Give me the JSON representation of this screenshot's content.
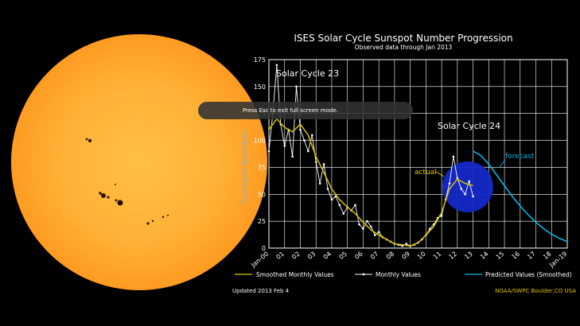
{
  "banner": {
    "text": "Press Esc to exit full screen mode."
  },
  "footer": {
    "updated": "Updated 2013 Feb  4",
    "credit": "NOAA/SWPC Boulder,CO USA"
  },
  "chart_data": {
    "type": "line",
    "title": "ISES Solar Cycle Sunspot Number Progression",
    "subtitle": "Observed data through Jan 2013",
    "ylabel": "Sunspot Number",
    "ylim": [
      0,
      175
    ],
    "yticks": [
      0,
      25,
      50,
      75,
      100,
      125,
      150,
      175
    ],
    "xlim": [
      2000,
      2019
    ],
    "xticks": [
      {
        "v": 2000,
        "label": "Jan-00"
      },
      {
        "v": 2001,
        "label": "01"
      },
      {
        "v": 2002,
        "label": "02"
      },
      {
        "v": 2003,
        "label": "03"
      },
      {
        "v": 2004,
        "label": "04"
      },
      {
        "v": 2005,
        "label": "05"
      },
      {
        "v": 2006,
        "label": "06"
      },
      {
        "v": 2007,
        "label": "07"
      },
      {
        "v": 2008,
        "label": "08"
      },
      {
        "v": 2009,
        "label": "09"
      },
      {
        "v": 2010,
        "label": "10"
      },
      {
        "v": 2011,
        "label": "11"
      },
      {
        "v": 2012,
        "label": "12"
      },
      {
        "v": 2013,
        "label": "13"
      },
      {
        "v": 2014,
        "label": "14"
      },
      {
        "v": 2015,
        "label": "15"
      },
      {
        "v": 2016,
        "label": "16"
      },
      {
        "v": 2017,
        "label": "17"
      },
      {
        "v": 2018,
        "label": "18"
      },
      {
        "v": 2019,
        "label": "Jan-19"
      }
    ],
    "grid": true,
    "colors": {
      "smoothed": "#d8c200",
      "monthly": "#ffffff",
      "predicted": "#00b7e6",
      "circle": "#1428c8"
    },
    "annotations": [
      {
        "text": "Solar Cycle 23"
      },
      {
        "text": "Solar Cycle 24"
      },
      {
        "text": "actual"
      },
      {
        "text": "forecast"
      }
    ],
    "legend": [
      {
        "name": "Smoothed Monthly Values"
      },
      {
        "name": "Monthly Values"
      },
      {
        "name": "Predicted Values (Smoothed)"
      }
    ],
    "series": [
      {
        "name": "Monthly Values",
        "x": [
          2000.0,
          2000.25,
          2000.5,
          2000.75,
          2001.0,
          2001.25,
          2001.5,
          2001.75,
          2002.0,
          2002.25,
          2002.5,
          2002.75,
          2003.0,
          2003.25,
          2003.5,
          2003.75,
          2004.0,
          2004.25,
          2004.5,
          2004.75,
          2005.0,
          2005.25,
          2005.5,
          2005.75,
          2006.0,
          2006.25,
          2006.5,
          2006.75,
          2007.0,
          2007.25,
          2007.5,
          2007.75,
          2008.0,
          2008.25,
          2008.5,
          2008.75,
          2009.0,
          2009.25,
          2009.5,
          2009.75,
          2010.0,
          2010.25,
          2010.5,
          2010.75,
          2011.0,
          2011.25,
          2011.5,
          2011.75,
          2012.0,
          2012.25,
          2012.5,
          2012.75,
          2013.0
        ],
        "values": [
          90,
          125,
          170,
          115,
          95,
          110,
          85,
          150,
          110,
          100,
          90,
          105,
          80,
          60,
          78,
          55,
          45,
          48,
          40,
          32,
          38,
          35,
          40,
          22,
          18,
          25,
          20,
          12,
          15,
          10,
          8,
          6,
          4,
          3,
          2,
          4,
          2,
          3,
          5,
          8,
          12,
          18,
          22,
          28,
          30,
          45,
          60,
          85,
          65,
          55,
          50,
          62,
          48
        ]
      },
      {
        "name": "Smoothed Monthly Values",
        "x": [
          2000.0,
          2000.5,
          2001.0,
          2001.5,
          2002.0,
          2002.5,
          2003.0,
          2003.5,
          2004.0,
          2004.5,
          2005.0,
          2005.5,
          2006.0,
          2006.5,
          2007.0,
          2007.5,
          2008.0,
          2008.5,
          2009.0,
          2009.5,
          2010.0,
          2010.5,
          2011.0,
          2011.5,
          2012.0,
          2012.5,
          2013.0
        ],
        "values": [
          110,
          120,
          112,
          108,
          115,
          105,
          85,
          70,
          55,
          45,
          38,
          32,
          24,
          17,
          12,
          8,
          4,
          3,
          2,
          5,
          12,
          20,
          33,
          55,
          64,
          60,
          58
        ]
      },
      {
        "name": "Predicted Values (Smoothed)",
        "x": [
          2013.0,
          2013.5,
          2014.0,
          2014.5,
          2015.0,
          2015.5,
          2016.0,
          2016.5,
          2017.0,
          2017.5,
          2018.0,
          2018.5,
          2019.0
        ],
        "values": [
          90,
          86,
          78,
          68,
          58,
          48,
          39,
          31,
          24,
          18,
          13,
          9,
          6
        ]
      }
    ]
  }
}
